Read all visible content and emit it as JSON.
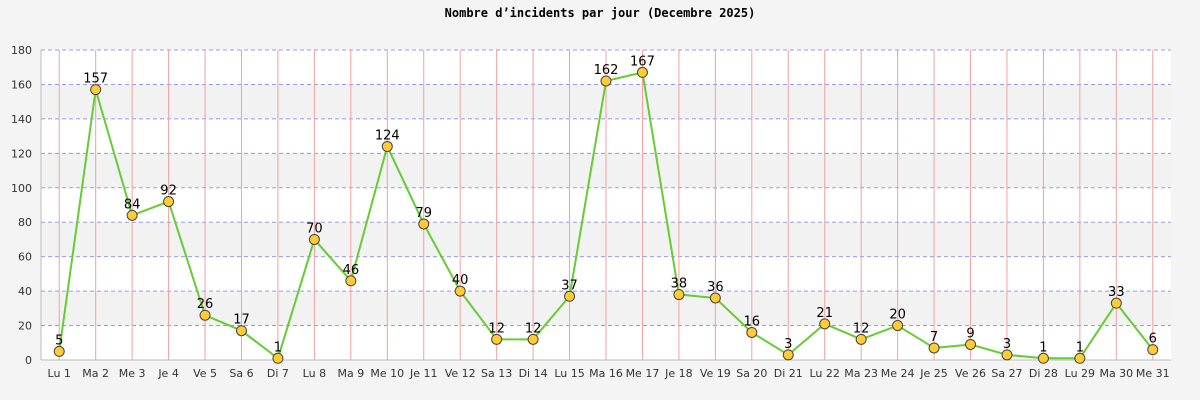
{
  "chart_data": {
    "type": "line",
    "title": "Nombre d’incidents par jour (Decembre 2025)",
    "xlabel": "",
    "ylabel": "",
    "ylim": [
      0,
      180
    ],
    "yticks": [
      0,
      20,
      40,
      60,
      80,
      100,
      120,
      140,
      160,
      180
    ],
    "grid": true,
    "categories": [
      "Lu 1",
      "Ma 2",
      "Me 3",
      "Je 4",
      "Ve 5",
      "Sa 6",
      "Di 7",
      "Lu 8",
      "Ma 9",
      "Me 10",
      "Je 11",
      "Ve 12",
      "Sa 13",
      "Di 14",
      "Lu 15",
      "Ma 16",
      "Me 17",
      "Je 18",
      "Ve 19",
      "Sa 20",
      "Di 21",
      "Lu 22",
      "Ma 23",
      "Me 24",
      "Je 25",
      "Ve 26",
      "Sa 27",
      "Di 28",
      "Lu 29",
      "Ma 30",
      "Me 31"
    ],
    "series": [
      {
        "values": [
          5,
          157,
          84,
          92,
          26,
          17,
          1,
          70,
          46,
          124,
          79,
          40,
          12,
          12,
          37,
          162,
          167,
          38,
          36,
          16,
          3,
          21,
          12,
          20,
          7,
          9,
          3,
          1,
          1,
          33,
          6
        ]
      }
    ],
    "colors": {
      "line": "#66cc33",
      "marker_fill": "#ffcc33",
      "marker_stroke": "#444444",
      "vgrid": "#f4a0a0",
      "hgrid": "#9999ee",
      "band_a": "#ffffff",
      "band_b": "#f2f2f2",
      "background": "#f4f4f4"
    }
  }
}
